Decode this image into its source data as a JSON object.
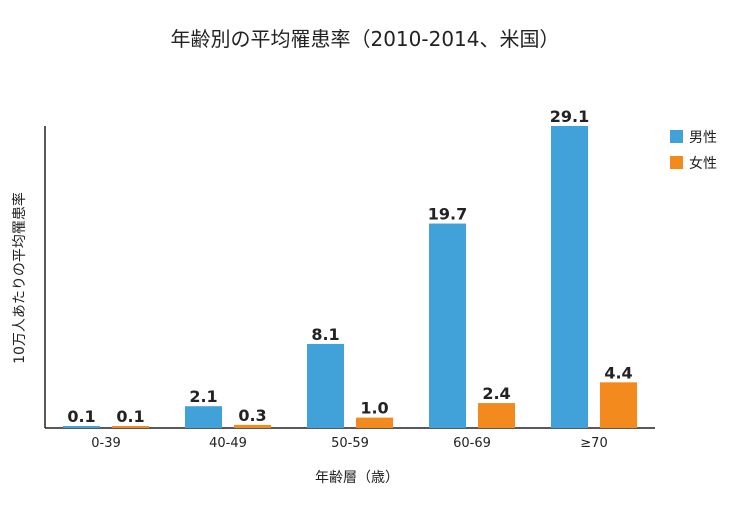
{
  "chart_data": {
    "type": "bar",
    "title": "年齢別の平均罹患率（2010-2014、米国）",
    "xlabel": "年齢層（歳）",
    "ylabel": "10万人あたりの平均罹患率",
    "categories": [
      "0-39",
      "40-49",
      "50-59",
      "60-69",
      "≥70"
    ],
    "series": [
      {
        "name": "男性",
        "color": "#41a2da",
        "values": [
          0.1,
          2.1,
          8.1,
          19.7,
          29.1
        ],
        "labels": [
          "0.1",
          "2.1",
          "8.1",
          "19.7",
          "29.1"
        ]
      },
      {
        "name": "女性",
        "color": "#f28a1e",
        "values": [
          0.1,
          0.3,
          1.0,
          2.4,
          4.4
        ],
        "labels": [
          "0.1",
          "0.3",
          "1.0",
          "2.4",
          "4.4"
        ]
      }
    ],
    "ylim": [
      0,
      29.1
    ],
    "grid": false,
    "legend_position": "top-right"
  }
}
